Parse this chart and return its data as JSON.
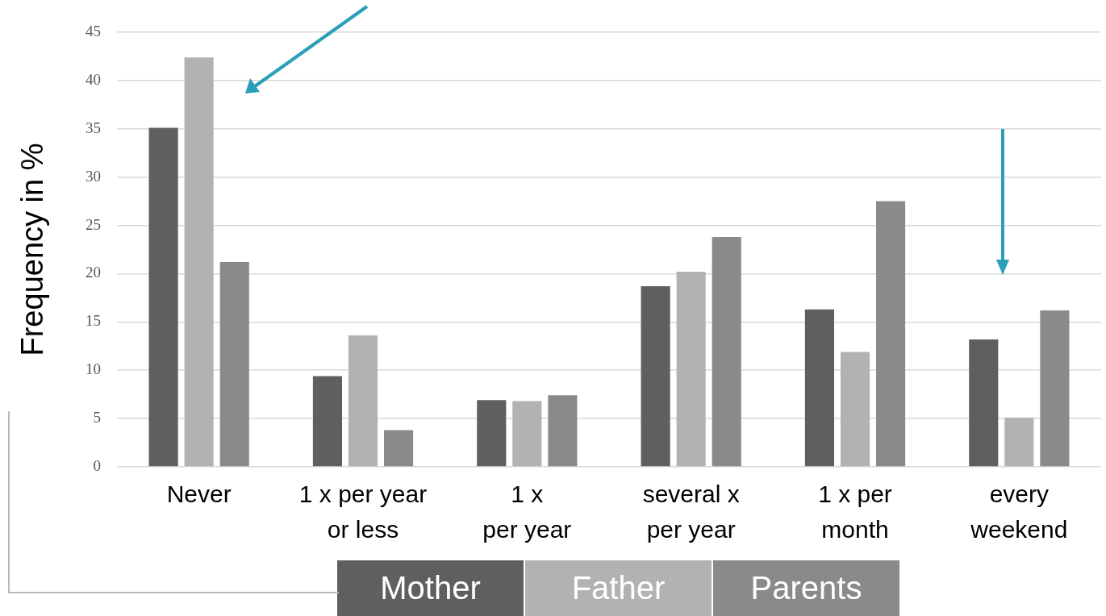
{
  "chart_data": {
    "type": "bar",
    "ylabel": "Frequency in %",
    "categories": [
      "Never",
      "1 x per year\nor less",
      "1 x\nper year",
      "several x\nper year",
      "1 x per\nmonth",
      "every\nweekend"
    ],
    "series": [
      {
        "name": "Mother",
        "color": "#5f5f5f",
        "values": [
          35.1,
          9.4,
          6.9,
          18.7,
          16.3,
          13.2
        ]
      },
      {
        "name": "Father",
        "color": "#b2b2b2",
        "values": [
          42.4,
          13.6,
          6.8,
          20.2,
          11.9,
          5.1
        ]
      },
      {
        "name": "Parents",
        "color": "#8a8a8a",
        "values": [
          21.2,
          3.8,
          7.4,
          23.8,
          27.5,
          16.2
        ]
      }
    ],
    "ylim": [
      0,
      45
    ],
    "yticks": [
      0,
      5,
      10,
      15,
      20,
      25,
      30,
      35,
      40,
      45
    ],
    "grid": "y",
    "legend": "bottom"
  }
}
